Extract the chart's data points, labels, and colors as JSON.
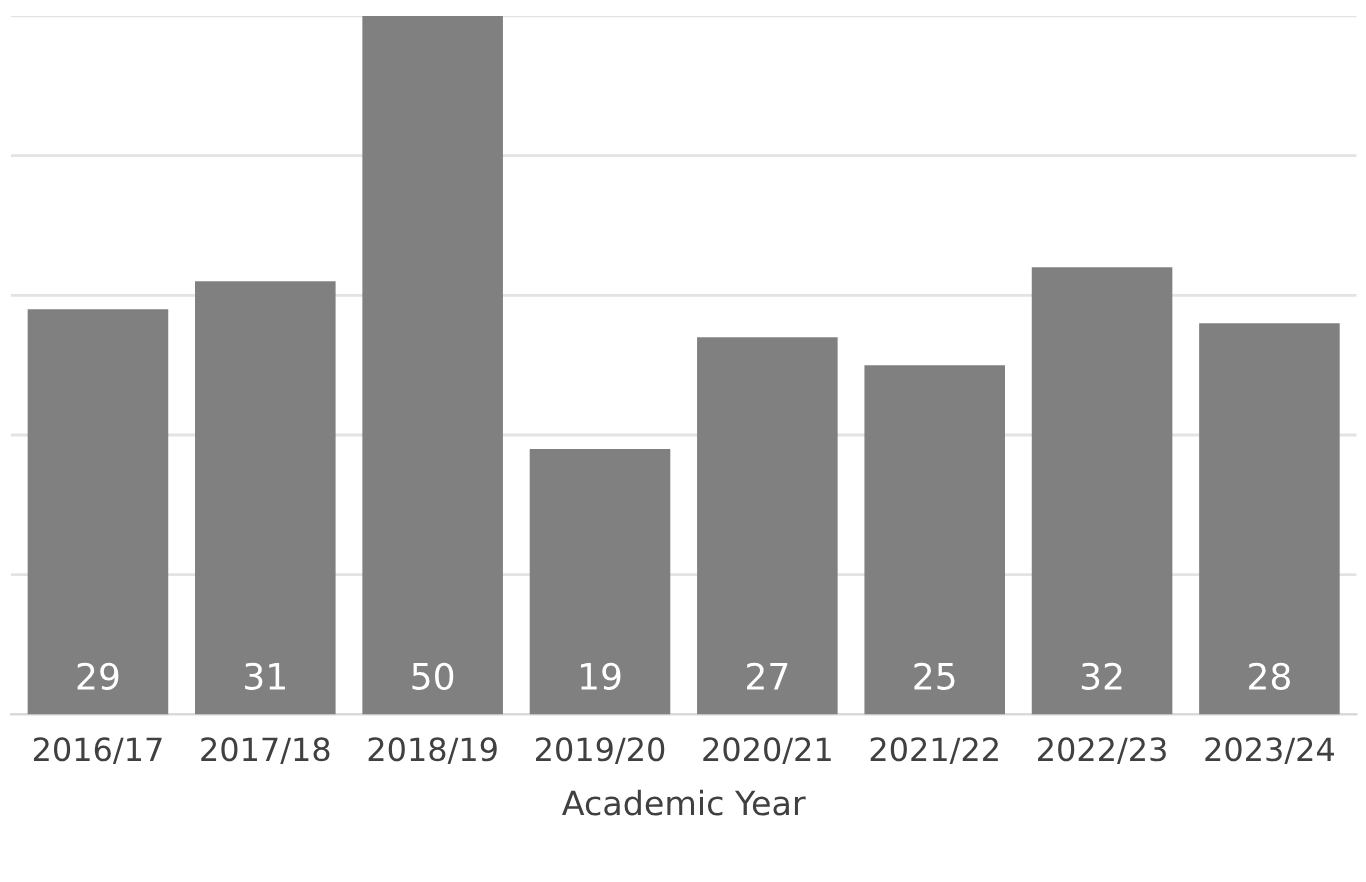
{
  "chart_data": {
    "type": "bar",
    "xlabel": "Academic Year",
    "categories": [
      "2016/17",
      "2017/18",
      "2018/19",
      "2019/20",
      "2020/21",
      "2021/22",
      "2022/23",
      "2023/24"
    ],
    "values": [
      29,
      31,
      50,
      19,
      27,
      25,
      32,
      28
    ],
    "color": "#808080",
    "data_labels": true,
    "grid": "y",
    "tick_labels": "x",
    "ylim": [
      0,
      50
    ],
    "yticks": [
      {
        "value": 0,
        "label": null
      },
      {
        "value": 10,
        "label": null
      },
      {
        "value": 20,
        "label": null
      },
      {
        "value": 30,
        "label": null
      },
      {
        "value": 40,
        "label": null
      },
      {
        "value": 50,
        "label": null
      }
    ]
  }
}
